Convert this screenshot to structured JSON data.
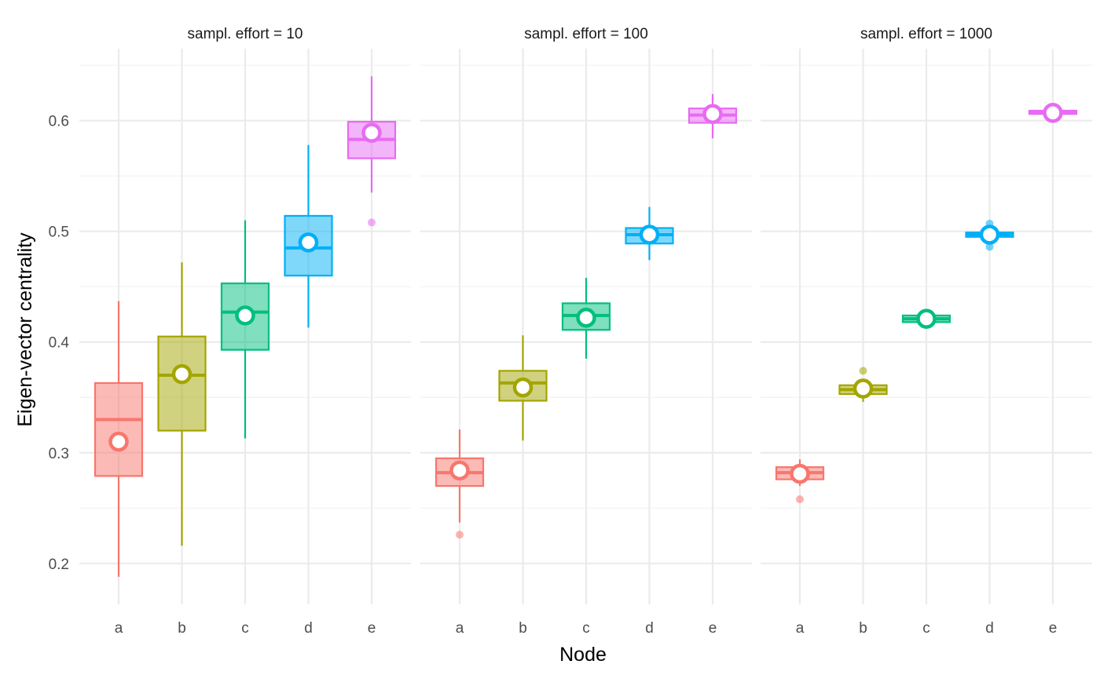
{
  "chart_data": {
    "type": "boxplot",
    "xlabel": "Node",
    "ylabel": "Eigen-vector centrality",
    "ylim": [
      0.163,
      0.665
    ],
    "yticks": [
      0.2,
      0.3,
      0.4,
      0.5,
      0.6
    ],
    "ytick_labels": [
      "0.2",
      "0.3",
      "0.4",
      "0.5",
      "0.6"
    ],
    "minor_yticks": [
      0.25,
      0.35,
      0.45,
      0.55,
      0.65
    ],
    "categories": [
      "a",
      "b",
      "c",
      "d",
      "e"
    ],
    "colors": [
      "#F8766D",
      "#A3A500",
      "#00BF7D",
      "#00B0F6",
      "#E76BF3"
    ],
    "grid": true,
    "legend": "none",
    "facets": [
      {
        "title": "sampl. effort = 10",
        "boxes": [
          {
            "node": "a",
            "min": 0.188,
            "q1": 0.279,
            "median": 0.33,
            "q3": 0.363,
            "max": 0.437,
            "mean": 0.31,
            "outliers": []
          },
          {
            "node": "b",
            "min": 0.216,
            "q1": 0.32,
            "median": 0.37,
            "q3": 0.405,
            "max": 0.472,
            "mean": 0.371,
            "outliers": []
          },
          {
            "node": "c",
            "min": 0.313,
            "q1": 0.393,
            "median": 0.427,
            "q3": 0.453,
            "max": 0.51,
            "mean": 0.424,
            "outliers": []
          },
          {
            "node": "d",
            "min": 0.413,
            "q1": 0.46,
            "median": 0.485,
            "q3": 0.514,
            "max": 0.578,
            "mean": 0.49,
            "outliers": []
          },
          {
            "node": "e",
            "min": 0.535,
            "q1": 0.566,
            "median": 0.583,
            "q3": 0.599,
            "max": 0.64,
            "mean": 0.589,
            "outliers": [
              0.508
            ]
          }
        ]
      },
      {
        "title": "sampl. effort = 100",
        "boxes": [
          {
            "node": "a",
            "min": 0.237,
            "q1": 0.27,
            "median": 0.282,
            "q3": 0.295,
            "max": 0.321,
            "mean": 0.284,
            "outliers": [
              0.226
            ]
          },
          {
            "node": "b",
            "min": 0.311,
            "q1": 0.347,
            "median": 0.363,
            "q3": 0.374,
            "max": 0.406,
            "mean": 0.359,
            "outliers": []
          },
          {
            "node": "c",
            "min": 0.385,
            "q1": 0.411,
            "median": 0.424,
            "q3": 0.435,
            "max": 0.458,
            "mean": 0.422,
            "outliers": []
          },
          {
            "node": "d",
            "min": 0.474,
            "q1": 0.489,
            "median": 0.497,
            "q3": 0.503,
            "max": 0.522,
            "mean": 0.497,
            "outliers": []
          },
          {
            "node": "e",
            "min": 0.584,
            "q1": 0.598,
            "median": 0.605,
            "q3": 0.611,
            "max": 0.624,
            "mean": 0.606,
            "outliers": []
          }
        ]
      },
      {
        "title": "sampl. effort = 1000",
        "boxes": [
          {
            "node": "a",
            "min": 0.27,
            "q1": 0.276,
            "median": 0.282,
            "q3": 0.287,
            "max": 0.294,
            "mean": 0.281,
            "outliers": [
              0.258
            ]
          },
          {
            "node": "b",
            "min": 0.346,
            "q1": 0.353,
            "median": 0.357,
            "q3": 0.361,
            "max": 0.366,
            "mean": 0.358,
            "outliers": [
              0.374
            ]
          },
          {
            "node": "c",
            "min": 0.416,
            "q1": 0.418,
            "median": 0.421,
            "q3": 0.424,
            "max": 0.426,
            "mean": 0.421,
            "outliers": []
          },
          {
            "node": "d",
            "min": 0.492,
            "q1": 0.495,
            "median": 0.497,
            "q3": 0.499,
            "max": 0.502,
            "mean": 0.497,
            "outliers": [
              0.486,
              0.507
            ]
          },
          {
            "node": "e",
            "min": 0.604,
            "q1": 0.606,
            "median": 0.607,
            "q3": 0.609,
            "max": 0.61,
            "mean": 0.607,
            "outliers": []
          }
        ]
      }
    ]
  }
}
